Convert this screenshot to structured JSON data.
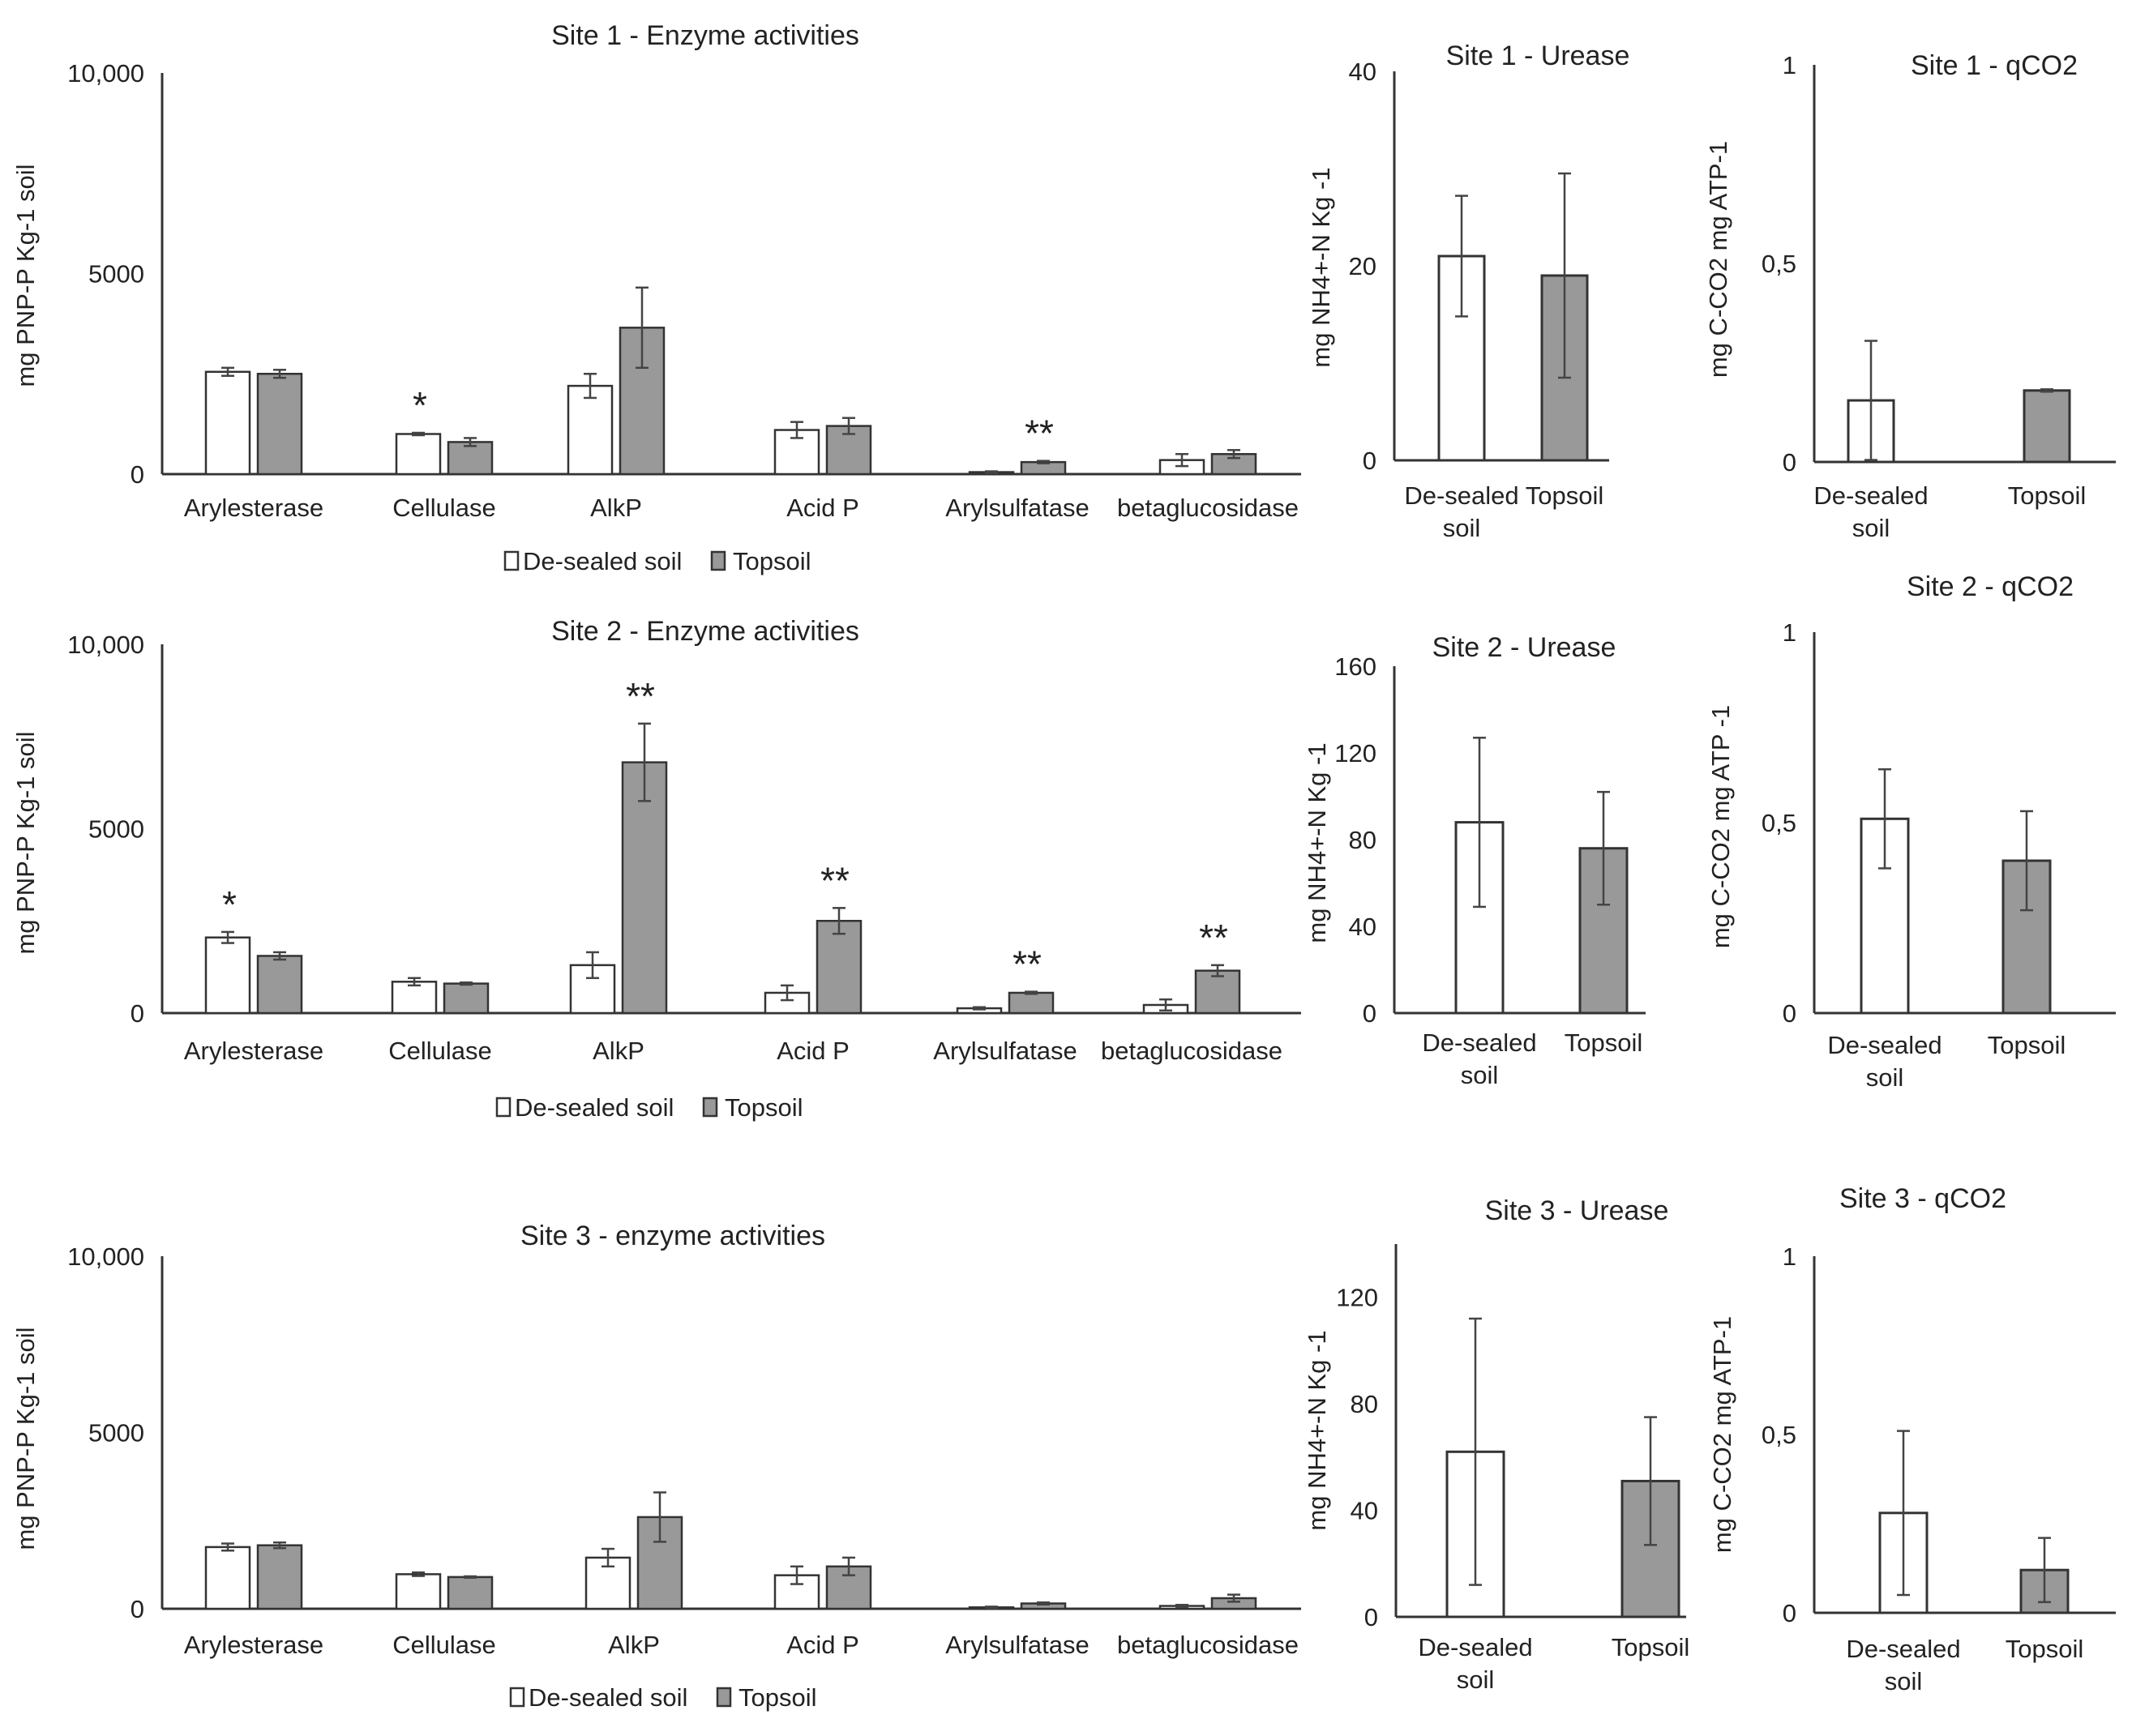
{
  "figure": {
    "legend": {
      "white": "De-sealed soil",
      "grey": "Topsoil"
    },
    "colors": {
      "white": "#ffffff",
      "grey": "#999999",
      "edge": "#333333",
      "axis": "#333333"
    }
  },
  "chart_data": [
    {
      "id": "s1-enzymes",
      "type": "bar",
      "title": "Site 1  - Enzyme activities",
      "ylabel": "mg PNP-P Kg-1 soil",
      "yticks": [
        "0",
        "5000",
        "10,000"
      ],
      "ylim": [
        0,
        10000
      ],
      "categories": [
        "Arylesterase",
        "Cellulase",
        "AlkP",
        "Acid P",
        "Arylsulfatase",
        "betaglucosidase"
      ],
      "series": [
        {
          "name": "De-sealed soil",
          "values": [
            2550,
            1000,
            2200,
            1100,
            50,
            350
          ],
          "errors": [
            100,
            30,
            300,
            200,
            20,
            150
          ]
        },
        {
          "name": "Topsoil",
          "values": [
            2500,
            800,
            3650,
            1200,
            300,
            500
          ],
          "errors": [
            100,
            100,
            1000,
            200,
            30,
            100
          ]
        }
      ],
      "annotations": [
        {
          "category": "Cellulase",
          "label": "*"
        },
        {
          "category": "Arylsulfatase",
          "label": "**"
        }
      ]
    },
    {
      "id": "s1-urease",
      "type": "bar",
      "title": "Site 1 - Urease",
      "ylabel": "mg NH4+-N  Kg -1",
      "yticks": [
        "0",
        "20",
        "40"
      ],
      "ylim": [
        0,
        40
      ],
      "categories": [
        "De-sealed soil",
        "Topsoil"
      ],
      "series": [
        {
          "name": "value",
          "values": [
            21,
            19
          ],
          "errors": [
            6.2,
            10.5
          ]
        }
      ]
    },
    {
      "id": "s1-qco2",
      "type": "bar",
      "title": "Site 1 - qCO2",
      "ylabel": "mg C-CO2 mg ATP-1",
      "yticks": [
        "0",
        "0,5",
        "1"
      ],
      "ylim": [
        0,
        1
      ],
      "categories": [
        "De-sealed soil",
        "Topsoil"
      ],
      "series": [
        {
          "name": "value",
          "values": [
            0.155,
            0.18
          ],
          "errors": [
            0.15,
            0.003
          ]
        }
      ]
    },
    {
      "id": "s2-enzymes",
      "type": "bar",
      "title": "Site 2 - Enzyme activities",
      "ylabel": "mg PNP-P Kg-1 soil",
      "yticks": [
        "0",
        "5000",
        "10,000"
      ],
      "ylim": [
        0,
        10000
      ],
      "categories": [
        "Arylesterase",
        "Cellulase",
        "AlkP",
        "Acid P",
        "Arylsulfatase",
        "betaglucosidase"
      ],
      "series": [
        {
          "name": "De-sealed soil",
          "values": [
            2050,
            850,
            1300,
            550,
            130,
            220
          ],
          "errors": [
            150,
            100,
            350,
            200,
            30,
            150
          ]
        },
        {
          "name": "Topsoil",
          "values": [
            1550,
            800,
            6800,
            2500,
            550,
            1150
          ],
          "errors": [
            100,
            30,
            1050,
            350,
            30,
            150
          ]
        }
      ],
      "annotations": [
        {
          "category": "Arylesterase",
          "label": "*"
        },
        {
          "category": "AlkP",
          "label": "**"
        },
        {
          "category": "Acid P",
          "label": "**"
        },
        {
          "category": "Arylsulfatase",
          "label": "**"
        },
        {
          "category": "betaglucosidase",
          "label": "**"
        }
      ]
    },
    {
      "id": "s2-urease",
      "type": "bar",
      "title": "Site 2 - Urease",
      "ylabel": "mg NH4+-N  Kg -1",
      "yticks": [
        "0",
        "40",
        "80",
        "120",
        "160"
      ],
      "ylim": [
        0,
        160
      ],
      "categories": [
        "De-sealed soil",
        "Topsoil"
      ],
      "series": [
        {
          "name": "value",
          "values": [
            88,
            76
          ],
          "errors": [
            39,
            26
          ]
        }
      ]
    },
    {
      "id": "s2-qco2",
      "type": "bar",
      "title": "Site 2 - qCO2",
      "ylabel": "mg C-CO2 mg ATP -1",
      "yticks": [
        "0",
        "0,5",
        "1"
      ],
      "ylim": [
        0,
        1
      ],
      "categories": [
        "De-sealed soil",
        "Topsoil"
      ],
      "series": [
        {
          "name": "value",
          "values": [
            0.51,
            0.4
          ],
          "errors": [
            0.13,
            0.13
          ]
        }
      ]
    },
    {
      "id": "s3-enzymes",
      "type": "bar",
      "title": "Site 3 - enzyme activities",
      "ylabel": "mg PNP-P Kg-1 soil",
      "yticks": [
        "0",
        "5000",
        "10,000"
      ],
      "ylim": [
        0,
        10000
      ],
      "categories": [
        "Arylesterase",
        "Cellulase",
        "AlkP",
        "Acid P",
        "Arylsulfatase",
        "betaglucosidase"
      ],
      "series": [
        {
          "name": "De-sealed soil",
          "values": [
            1750,
            980,
            1450,
            950,
            40,
            80
          ],
          "errors": [
            100,
            50,
            250,
            250,
            20,
            30
          ]
        },
        {
          "name": "Topsoil",
          "values": [
            1800,
            900,
            2600,
            1200,
            150,
            300
          ],
          "errors": [
            80,
            20,
            700,
            250,
            30,
            100
          ]
        }
      ],
      "annotations": []
    },
    {
      "id": "s3-urease",
      "type": "bar",
      "title": "Site 3 - Urease",
      "ylabel": "mg NH4+-N Kg -1",
      "yticks": [
        "0",
        "40",
        "80",
        "120"
      ],
      "ylim": [
        0,
        140
      ],
      "categories": [
        "De-sealed soil",
        "Topsoil"
      ],
      "series": [
        {
          "name": "value",
          "values": [
            62,
            51
          ],
          "errors": [
            50,
            24
          ]
        }
      ]
    },
    {
      "id": "s3-qco2",
      "type": "bar",
      "title": "Site 3 - qCO2",
      "ylabel": "mg C-CO2 mg ATP-1",
      "yticks": [
        "0",
        "0,5",
        "1"
      ],
      "ylim": [
        0,
        1
      ],
      "categories": [
        "De-sealed soil",
        "Topsoil"
      ],
      "series": [
        {
          "name": "value",
          "values": [
            0.28,
            0.12
          ],
          "errors": [
            0.23,
            0.09
          ]
        }
      ]
    }
  ]
}
